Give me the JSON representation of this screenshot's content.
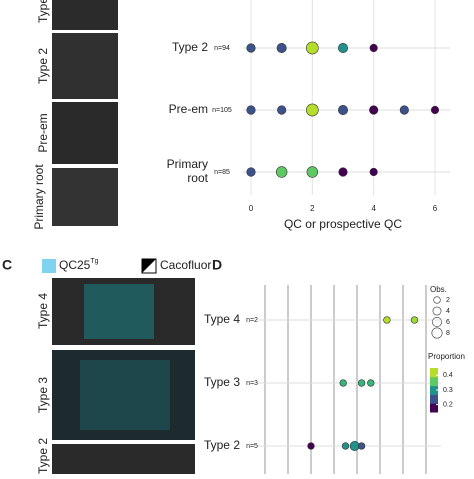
{
  "panels": {
    "top_images": [
      {
        "label": "Type"
      },
      {
        "label": "Type 2"
      },
      {
        "label": "Pre-em"
      },
      {
        "label": "Primary root"
      }
    ],
    "c": {
      "letter": "C",
      "marker_a": "QC25",
      "marker_a_sup": "Tg",
      "marker_b": "Cacofluor",
      "images": [
        "Type 4",
        "Type 3",
        "Type 2"
      ]
    },
    "d": {
      "letter": "D"
    }
  },
  "chart_data": [
    {
      "type": "dotplot",
      "x_label": "QC or prospective QC",
      "xlim": [
        0,
        6
      ],
      "xticks": [
        0,
        2,
        4,
        6
      ],
      "rows": [
        {
          "name": [
            "Type 2"
          ],
          "n_label": "n=94",
          "x": [
            0,
            1,
            2,
            3,
            4
          ],
          "sizes": [
            3,
            4,
            8,
            4,
            2
          ],
          "colors": [
            "#3b528b",
            "#3b528b",
            "#b5de2b",
            "#21918c",
            "#440154"
          ]
        },
        {
          "name": [
            "Pre-em"
          ],
          "n_label": "n=105",
          "x": [
            0,
            1,
            2,
            3,
            4,
            5,
            6
          ],
          "sizes": [
            3,
            3,
            8,
            4,
            3,
            3,
            2
          ],
          "colors": [
            "#3b528b",
            "#3b528b",
            "#b5de2b",
            "#3b528b",
            "#440154",
            "#3b528b",
            "#440154"
          ]
        },
        {
          "name": [
            "Primary",
            "root"
          ],
          "n_label": "n=85",
          "x": [
            0,
            1,
            2,
            3,
            4
          ],
          "sizes": [
            3,
            6,
            6,
            3,
            2
          ],
          "colors": [
            "#3b528b",
            "#5ec962",
            "#5ec962",
            "#440154",
            "#440154"
          ]
        }
      ]
    },
    {
      "type": "dotplot",
      "xlim": [
        0,
        7
      ],
      "gridlines": [
        0,
        1,
        2,
        3,
        4,
        5,
        6,
        7
      ],
      "rows": [
        {
          "name": [
            "Type 4"
          ],
          "n_label": "n=2",
          "x": [
            5.3,
            6.5
          ],
          "sizes": [
            2,
            2
          ],
          "colors": [
            "#b5de2b",
            "#a0da39"
          ]
        },
        {
          "name": [
            "Type 3"
          ],
          "n_label": "n=3",
          "x": [
            3.4,
            4.2,
            4.6
          ],
          "sizes": [
            2,
            2,
            2
          ],
          "colors": [
            "#35b779",
            "#35b779",
            "#35b779"
          ]
        },
        {
          "name": [
            "Type 2"
          ],
          "n_label": "n=5",
          "x": [
            2,
            3.5,
            3.9,
            4.2
          ],
          "sizes": [
            2,
            2,
            6,
            2
          ],
          "colors": [
            "#440154",
            "#21918c",
            "#21918c",
            "#3b528b"
          ]
        }
      ],
      "size_legend": {
        "title": "Obs.",
        "values": [
          2,
          4,
          6,
          8
        ]
      },
      "color_legend": {
        "title": "Proportion",
        "ticks": [
          0.4,
          0.3,
          0.2
        ],
        "range": [
          0.15,
          0.45
        ],
        "colors": [
          "#440154",
          "#3b528b",
          "#21918c",
          "#5ec962",
          "#b5de2b"
        ]
      }
    }
  ]
}
